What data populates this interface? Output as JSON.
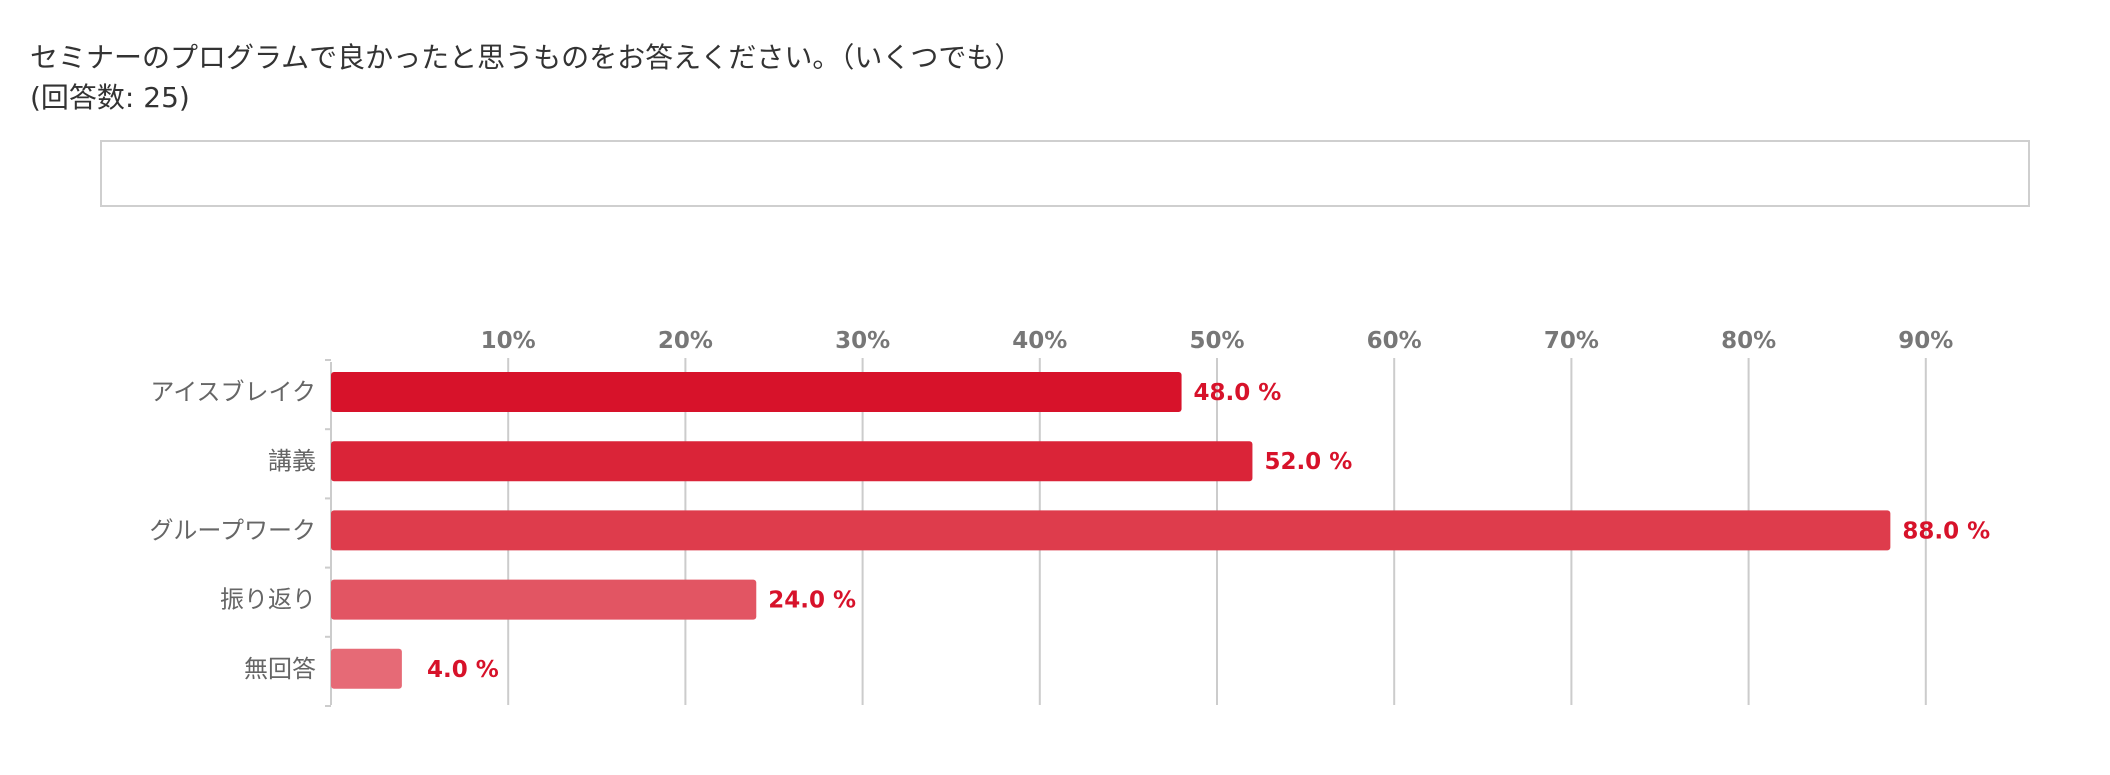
{
  "question": {
    "text": "セミナーのプログラムで良かったと思うものをお答えください。（いくつでも）",
    "answer_count": "(回答数: 25)"
  },
  "chart_data": {
    "type": "bar",
    "orientation": "horizontal",
    "categories": [
      "アイスブレイク",
      "講義",
      "グループワーク",
      "振り返り",
      "無回答"
    ],
    "values": [
      48.0,
      52.0,
      88.0,
      24.0,
      4.0
    ],
    "value_labels": [
      "48.0 %",
      "52.0 %",
      "88.0 %",
      "24.0 %",
      "4.0 %"
    ],
    "bar_colors": [
      "#d7122a",
      "#da2438",
      "#de3c4c",
      "#e25563",
      "#e66a76"
    ],
    "value_label_color": "#d7122a",
    "xlim": [
      0,
      100
    ],
    "x_ticks": [
      10,
      20,
      30,
      40,
      50,
      60,
      70,
      80,
      90
    ],
    "x_tick_labels": [
      "10%",
      "20%",
      "30%",
      "40%",
      "50%",
      "60%",
      "70%",
      "80%",
      "90%"
    ],
    "grid": true,
    "axis_position": "top",
    "title": "",
    "xlabel": "",
    "ylabel": ""
  }
}
